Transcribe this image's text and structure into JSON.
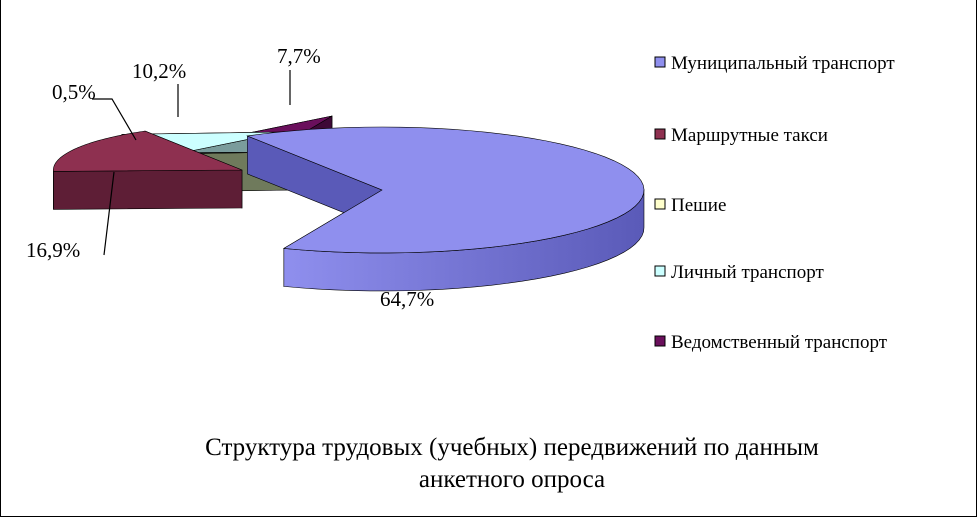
{
  "chart_data": {
    "type": "pie",
    "title": "Структура  трудовых (учебных) передвижений по данным анкетного опроса",
    "title_lines": [
      "Структура  трудовых (учебных) передвижений по данным",
      "анкетного опроса"
    ],
    "slices": [
      {
        "name": "Муниципальный транспорт",
        "value": 64.7,
        "label": "64,7%",
        "color": "#8f8fee",
        "side": "#5a5ab8"
      },
      {
        "name": "Маршрутные такси",
        "value": 16.9,
        "label": "16,9%",
        "color": "#8e3050",
        "side": "#5e1e36"
      },
      {
        "name": "Пешие",
        "value": 0.5,
        "label": "0,5%",
        "color": "#ffffcc",
        "side": "#6f7a5c"
      },
      {
        "name": "Личный транспорт",
        "value": 10.2,
        "label": "10,2%",
        "color": "#ccffff",
        "side": "#7a9c9c"
      },
      {
        "name": "Ведомственный транспорт",
        "value": 7.7,
        "label": "7,7%",
        "color": "#6a0f5c",
        "side": "#3e0836"
      }
    ],
    "legend_position": "right"
  }
}
